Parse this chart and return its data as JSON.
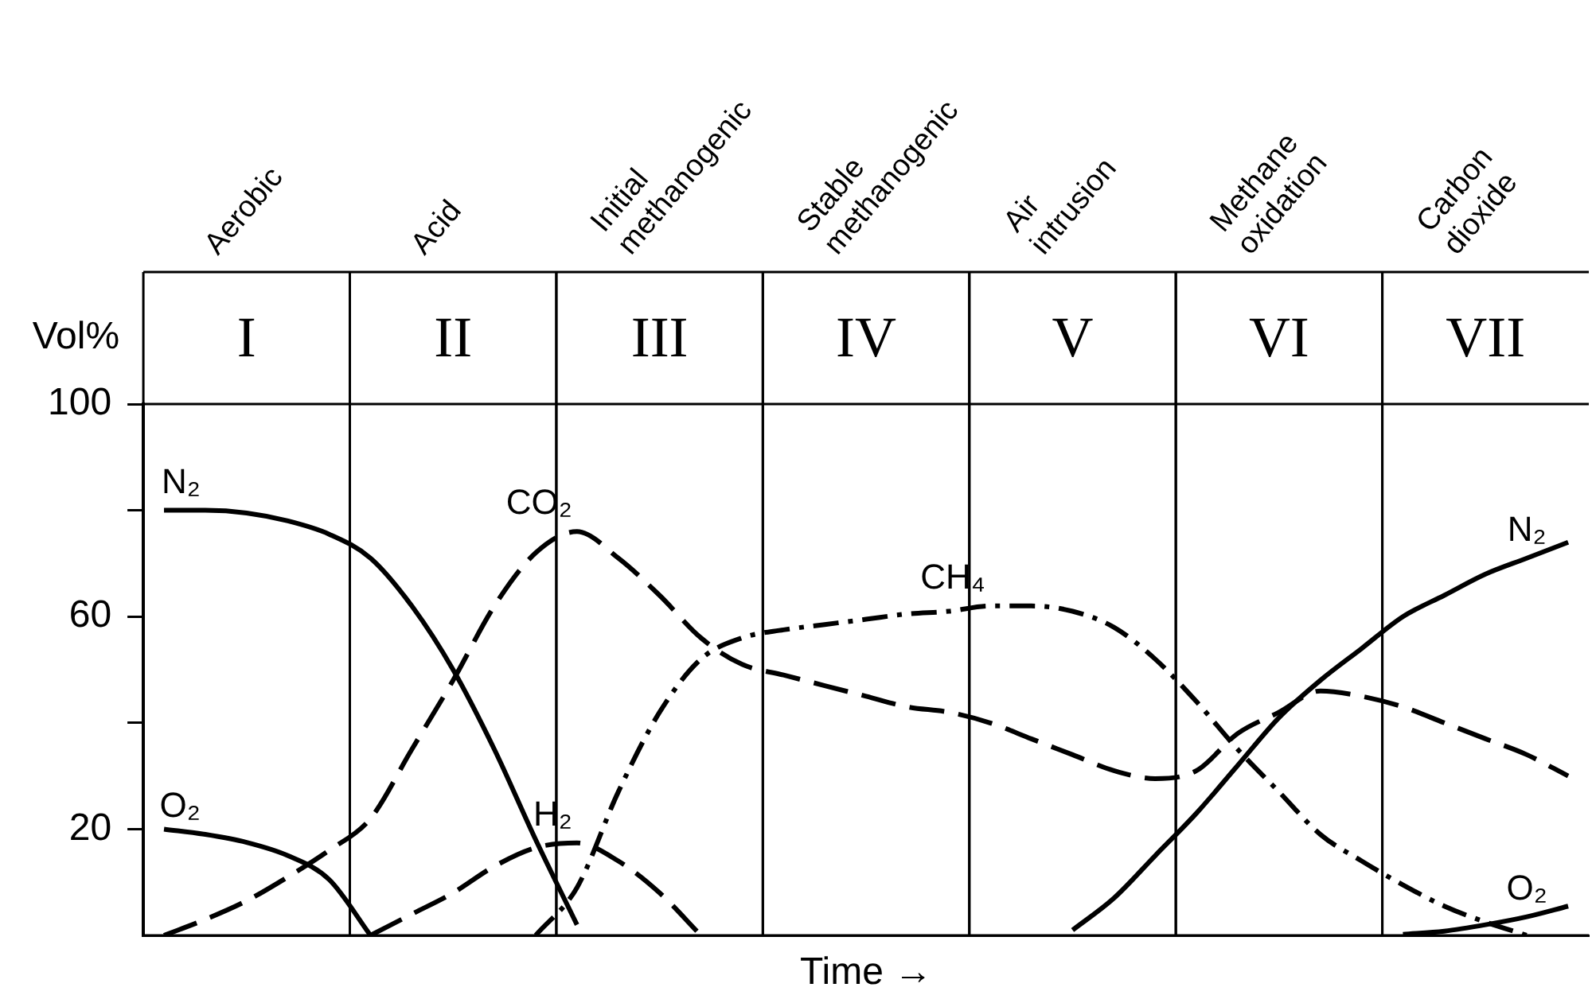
{
  "chart_data": {
    "type": "line",
    "xlabel": "Time →",
    "ylabel": "Vol%",
    "categories": [
      null,
      null,
      null,
      null,
      null,
      null,
      null,
      null,
      null,
      null,
      null,
      null,
      null,
      null,
      null,
      null,
      null,
      null,
      null,
      null,
      null,
      null,
      null,
      null,
      null,
      null,
      null,
      null,
      null,
      null,
      null,
      null,
      null,
      null,
      null
    ],
    "ylim": [
      0,
      100
    ],
    "yticks": [
      20,
      {
        "value": 40,
        "label": null
      },
      60,
      {
        "value": 80,
        "label": null
      },
      100
    ],
    "tick_labels": "y",
    "grid": false,
    "legend": false,
    "marker": "none",
    "annotations": [
      "Aerobic",
      "Acid",
      "Initial methanogenic",
      "Stable methanogenic",
      "Air intrusion",
      "Methane oxidation",
      "Carbon dioxide",
      "I",
      "II",
      "III",
      "IV",
      "V",
      "VI",
      "VII"
    ],
    "series": [
      {
        "name": "N₂",
        "color": "#000000",
        "line_style": "solid",
        "values": [
          80,
          80,
          79.5,
          78,
          75.5,
          71,
          62,
          50,
          35,
          18,
          2,
          null,
          null,
          null,
          null,
          null,
          null,
          null,
          null,
          null,
          null,
          null,
          1,
          7,
          15,
          23,
          32,
          41,
          48,
          54,
          60,
          64,
          68,
          71,
          74
        ]
      },
      {
        "name": "O₂",
        "color": "#000000",
        "line_style": "solid",
        "values": [
          20,
          19,
          17.5,
          15,
          10.5,
          0,
          null,
          null,
          null,
          null,
          null,
          null,
          null,
          null,
          null,
          null,
          null,
          null,
          null,
          null,
          null,
          null,
          null,
          null,
          null,
          null,
          null,
          null,
          null,
          null,
          0.2,
          0.8,
          2,
          3.5,
          5.5
        ]
      },
      {
        "name": "CO₂",
        "color": "#000000",
        "line_style": "dashed",
        "values": [
          0,
          3,
          6.5,
          11,
          16,
          22,
          35,
          48,
          62,
          72,
          76,
          71,
          64,
          56,
          51,
          49,
          47,
          45,
          43,
          42,
          40,
          37,
          34,
          31,
          29.5,
          31,
          38,
          42,
          46,
          45,
          43,
          40,
          37,
          34,
          30
        ]
      },
      {
        "name": "H₂",
        "color": "#000000",
        "line_style": "dashed",
        "values": [
          null,
          null,
          null,
          null,
          null,
          0,
          4,
          8,
          13,
          16.5,
          17.4,
          14,
          8,
          0,
          null,
          null,
          null,
          null,
          null,
          null,
          null,
          null,
          null,
          null,
          null,
          null,
          null,
          null,
          null,
          null,
          null,
          null,
          null,
          null,
          null
        ]
      },
      {
        "name": "CH₄",
        "color": "#000000",
        "line_style": "dotted",
        "values": [
          null,
          null,
          null,
          null,
          null,
          null,
          null,
          null,
          null,
          0,
          9,
          27,
          42,
          52,
          56,
          57.5,
          58.5,
          59.5,
          60.5,
          61,
          62,
          62,
          61,
          58,
          52,
          44,
          35,
          27,
          19,
          14,
          9.5,
          5.5,
          2.5,
          0,
          null
        ]
      }
    ]
  }
}
